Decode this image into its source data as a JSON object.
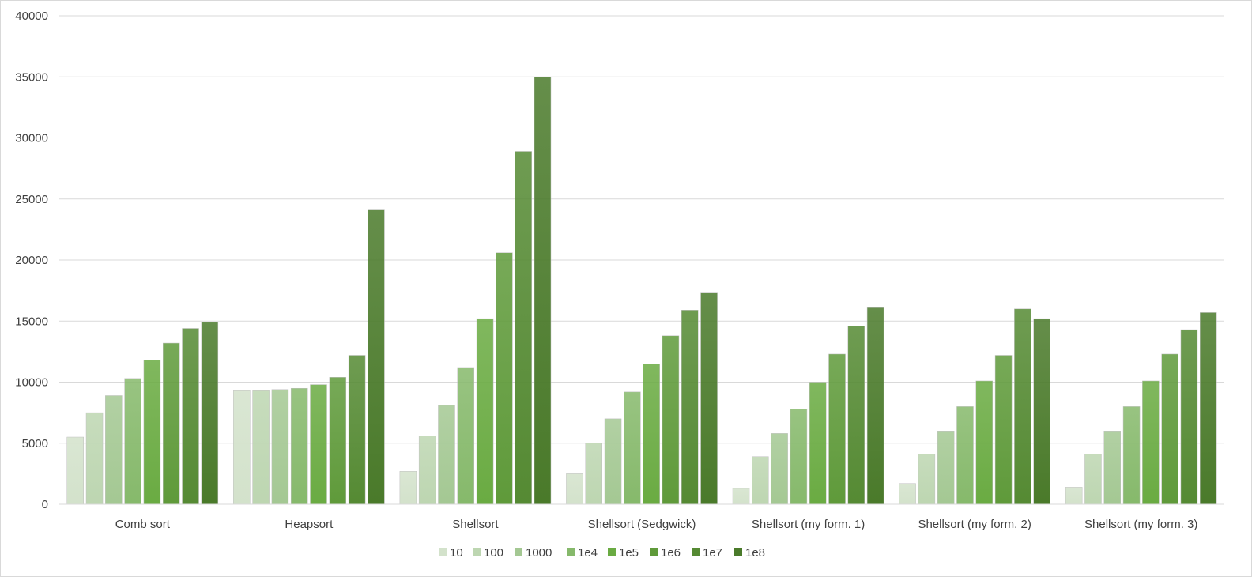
{
  "chart_data": {
    "type": "bar",
    "title": "",
    "xlabel": "",
    "ylabel": "",
    "ylim": [
      0,
      40000
    ],
    "yticks": [
      0,
      5000,
      10000,
      15000,
      20000,
      25000,
      30000,
      35000,
      40000
    ],
    "grid": true,
    "legend_position": "bottom",
    "categories": [
      "Comb sort",
      "Heapsort",
      "Shellsort",
      "Shellsort (Sedgwick)",
      "Shellsort (my form. 1)",
      "Shellsort (my form. 2)",
      "Shellsort (my form. 3)"
    ],
    "series": [
      {
        "name": "10",
        "color": "#d3e2cb",
        "values": [
          5500,
          9300,
          2700,
          2500,
          1300,
          1700,
          1400
        ]
      },
      {
        "name": "100",
        "color": "#bdd6b1",
        "values": [
          7500,
          9300,
          5600,
          5000,
          3900,
          4100,
          4100
        ]
      },
      {
        "name": "1000",
        "color": "#a4c893",
        "values": [
          8900,
          9400,
          8100,
          7000,
          5800,
          6000,
          6000
        ]
      },
      {
        "name": "1e4",
        "color": "#86b96b",
        "values": [
          10300,
          9500,
          11200,
          9200,
          7800,
          8000,
          8000
        ]
      },
      {
        "name": "1e5",
        "color": "#6aab42",
        "values": [
          11800,
          9800,
          15200,
          11500,
          10000,
          10100,
          10100
        ]
      },
      {
        "name": "1e6",
        "color": "#5f9a3a",
        "values": [
          13200,
          10400,
          20600,
          13800,
          12300,
          12200,
          12300
        ]
      },
      {
        "name": "1e7",
        "color": "#558a33",
        "values": [
          14400,
          12200,
          28900,
          15900,
          14600,
          16000,
          14300
        ]
      },
      {
        "name": "1e8",
        "color": "#4a7a2a",
        "values": [
          14900,
          24100,
          35000,
          17300,
          16100,
          15200,
          15700
        ]
      }
    ]
  }
}
